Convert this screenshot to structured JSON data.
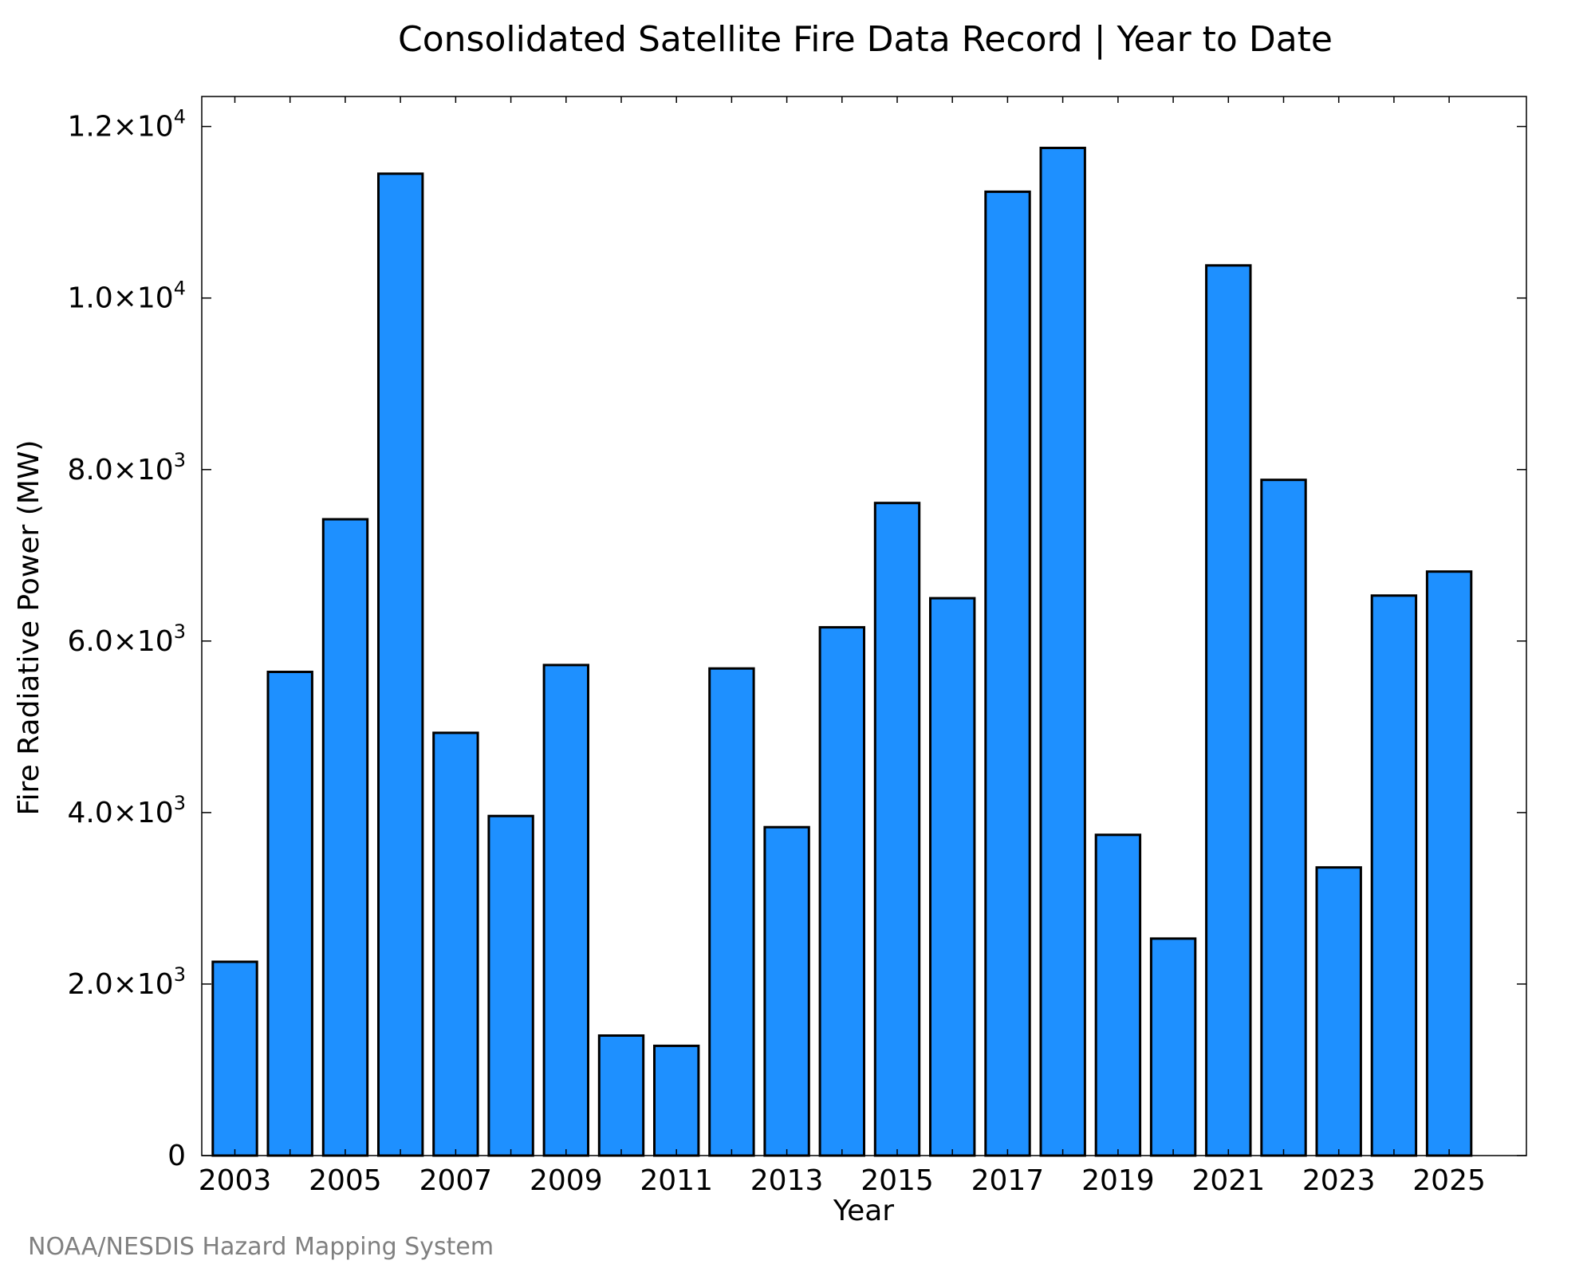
{
  "chart_data": {
    "type": "bar",
    "title": "Consolidated Satellite Fire Data Record | Year to Date",
    "xlabel": "Year",
    "ylabel": "Fire Radiative Power (MW)",
    "categories": [
      "2003",
      "2004",
      "2005",
      "2006",
      "2007",
      "2008",
      "2009",
      "2010",
      "2011",
      "2012",
      "2013",
      "2014",
      "2015",
      "2016",
      "2017",
      "2018",
      "2019",
      "2020",
      "2021",
      "2022",
      "2023",
      "2024",
      "2025"
    ],
    "values": [
      2260,
      5640,
      7420,
      11450,
      4930,
      3960,
      5720,
      1400,
      1280,
      5680,
      3830,
      6160,
      7610,
      6500,
      11240,
      11750,
      3740,
      2530,
      10380,
      7880,
      3360,
      6530,
      6810
    ],
    "x_tick_labels": [
      "2003",
      "2005",
      "2007",
      "2009",
      "2011",
      "2013",
      "2015",
      "2017",
      "2019",
      "2021",
      "2023",
      "2025"
    ],
    "y_ticks": [
      {
        "value": 0,
        "mantissa": "0",
        "exponent": ""
      },
      {
        "value": 2000,
        "mantissa": "2.0×10",
        "exponent": "3"
      },
      {
        "value": 4000,
        "mantissa": "4.0×10",
        "exponent": "3"
      },
      {
        "value": 6000,
        "mantissa": "6.0×10",
        "exponent": "3"
      },
      {
        "value": 8000,
        "mantissa": "8.0×10",
        "exponent": "3"
      },
      {
        "value": 10000,
        "mantissa": "1.0×10",
        "exponent": "4"
      },
      {
        "value": 12000,
        "mantissa": "1.2×10",
        "exponent": "4"
      }
    ],
    "ylim": [
      0,
      12350
    ],
    "xlim": [
      2002.4,
      2026.4
    ],
    "bar_color": "#1e90ff",
    "bar_edge_color": "#000000",
    "grid": false
  },
  "source": "NOAA/NESDIS Hazard Mapping System"
}
